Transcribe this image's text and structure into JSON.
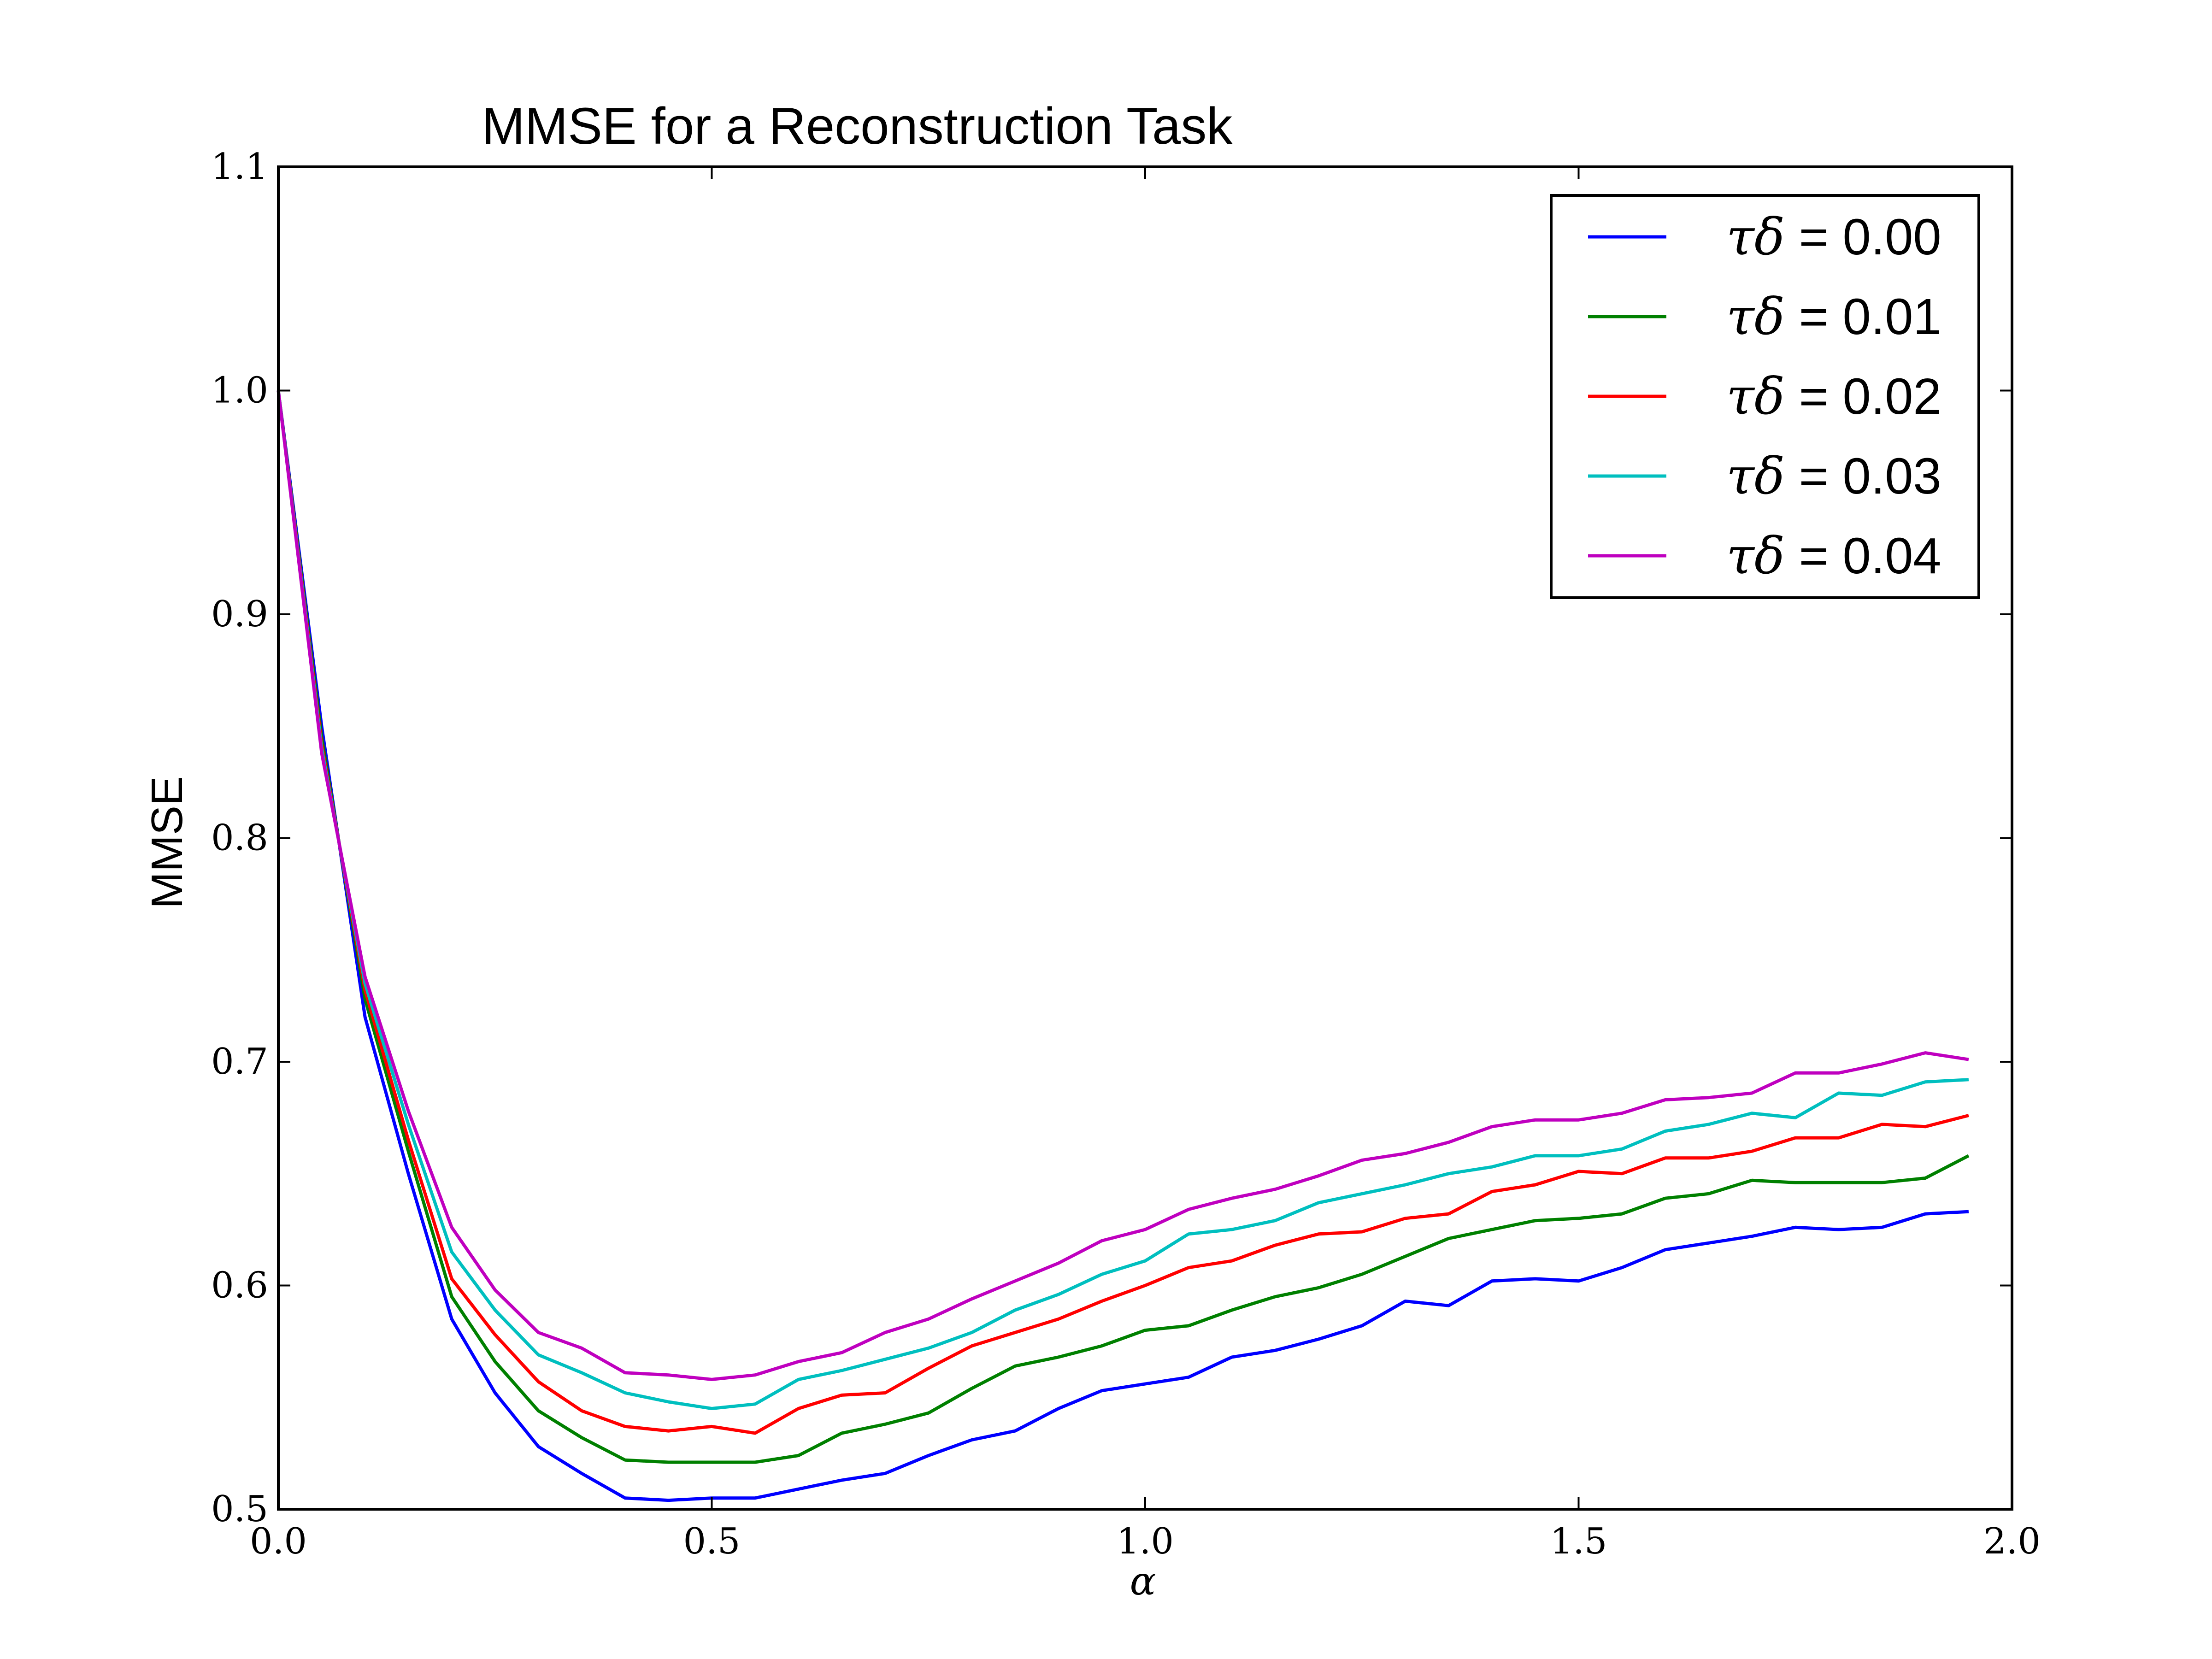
{
  "chart_data": {
    "type": "line",
    "title": "MMSE for a Reconstruction Task",
    "xlabel": "α",
    "ylabel": "MMSE",
    "xlim": [
      0.0,
      2.0
    ],
    "ylim": [
      0.5,
      1.1
    ],
    "xticks": [
      "0.0",
      "0.5",
      "1.0",
      "1.5",
      "2.0"
    ],
    "yticks": [
      "0.5",
      "0.6",
      "0.7",
      "0.8",
      "0.9",
      "1.0",
      "1.1"
    ],
    "grid": false,
    "legend_position": "top-right",
    "x": [
      0.0,
      0.05,
      0.1,
      0.15,
      0.2,
      0.25,
      0.3,
      0.35,
      0.4,
      0.45,
      0.5,
      0.55,
      0.6,
      0.65,
      0.7,
      0.75,
      0.8,
      0.85,
      0.9,
      0.95,
      1.0,
      1.05,
      1.1,
      1.15,
      1.2,
      1.25,
      1.3,
      1.35,
      1.4,
      1.45,
      1.5,
      1.55,
      1.6,
      1.65,
      1.7,
      1.75,
      1.8,
      1.85,
      1.9,
      1.95
    ],
    "series": [
      {
        "symbol": "τδ",
        "value_label": " = 0.00",
        "color": "#0000ff",
        "values": [
          1.0,
          0.85,
          0.72,
          0.65,
          0.585,
          0.552,
          0.528,
          0.516,
          0.505,
          0.504,
          0.505,
          0.505,
          0.509,
          0.513,
          0.516,
          0.524,
          0.531,
          0.535,
          0.545,
          0.553,
          0.556,
          0.559,
          0.568,
          0.571,
          0.576,
          0.582,
          0.593,
          0.591,
          0.602,
          0.603,
          0.602,
          0.608,
          0.616,
          0.619,
          0.622,
          0.626,
          0.625,
          0.626,
          0.632,
          0.633
        ]
      },
      {
        "symbol": "τδ",
        "value_label": " = 0.01",
        "color": "#008000",
        "values": [
          1.0,
          0.845,
          0.728,
          0.66,
          0.595,
          0.566,
          0.544,
          0.532,
          0.522,
          0.521,
          0.521,
          0.521,
          0.524,
          0.534,
          0.538,
          0.543,
          0.554,
          0.564,
          0.568,
          0.573,
          0.58,
          0.582,
          0.589,
          0.595,
          0.599,
          0.605,
          0.613,
          0.621,
          0.625,
          0.629,
          0.63,
          0.632,
          0.639,
          0.641,
          0.647,
          0.646,
          0.646,
          0.646,
          0.648,
          0.658
        ]
      },
      {
        "symbol": "τδ",
        "value_label": " = 0.02",
        "color": "#ff0000",
        "values": [
          1.0,
          0.842,
          0.732,
          0.665,
          0.603,
          0.578,
          0.557,
          0.544,
          0.537,
          0.535,
          0.537,
          0.534,
          0.545,
          0.551,
          0.552,
          0.563,
          0.573,
          0.579,
          0.585,
          0.593,
          0.6,
          0.608,
          0.611,
          0.618,
          0.623,
          0.624,
          0.63,
          0.632,
          0.642,
          0.645,
          0.651,
          0.65,
          0.657,
          0.657,
          0.66,
          0.666,
          0.666,
          0.672,
          0.671,
          0.676
        ]
      },
      {
        "symbol": "τδ",
        "value_label": " = 0.03",
        "color": "#00bfbf",
        "values": [
          1.0,
          0.84,
          0.735,
          0.672,
          0.615,
          0.589,
          0.569,
          0.561,
          0.552,
          0.548,
          0.545,
          0.547,
          0.558,
          0.562,
          0.567,
          0.572,
          0.579,
          0.589,
          0.596,
          0.605,
          0.611,
          0.623,
          0.625,
          0.629,
          0.637,
          0.641,
          0.645,
          0.65,
          0.653,
          0.658,
          0.658,
          0.661,
          0.669,
          0.672,
          0.677,
          0.675,
          0.686,
          0.685,
          0.691,
          0.692
        ]
      },
      {
        "symbol": "τδ",
        "value_label": " = 0.04",
        "color": "#bf00bf",
        "values": [
          1.0,
          0.838,
          0.738,
          0.678,
          0.626,
          0.598,
          0.579,
          0.572,
          0.561,
          0.56,
          0.558,
          0.56,
          0.566,
          0.57,
          0.579,
          0.585,
          0.594,
          0.602,
          0.61,
          0.62,
          0.625,
          0.634,
          0.639,
          0.643,
          0.649,
          0.656,
          0.659,
          0.664,
          0.671,
          0.674,
          0.674,
          0.677,
          0.683,
          0.684,
          0.686,
          0.695,
          0.695,
          0.699,
          0.704,
          0.701
        ]
      }
    ]
  }
}
